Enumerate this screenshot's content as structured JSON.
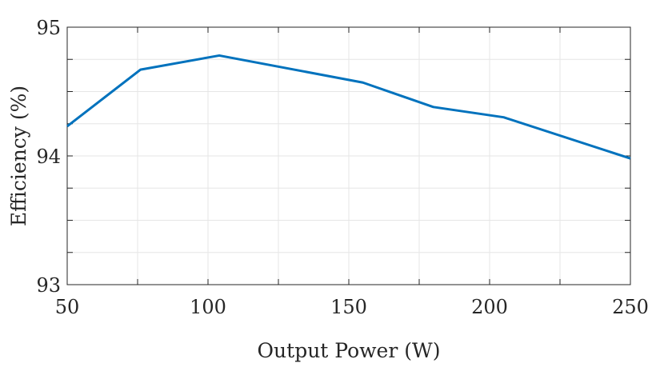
{
  "chart_data": {
    "type": "line",
    "xlabel": "Output Power (W)",
    "ylabel": "Efficiency (%)",
    "xlim": [
      50,
      250
    ],
    "ylim": [
      93,
      95
    ],
    "x_ticks": [
      50,
      100,
      150,
      200,
      250
    ],
    "x_tick_labels": [
      "50",
      "100",
      "150",
      "200",
      "250"
    ],
    "x_minor_ticks": [
      75,
      125,
      175,
      225
    ],
    "y_ticks": [
      93,
      94,
      95
    ],
    "y_tick_labels": [
      "93",
      "94",
      "95"
    ],
    "y_minor_ticks": [
      93.25,
      93.5,
      93.75,
      94.25,
      94.5,
      94.75
    ],
    "grid": true,
    "series": [
      {
        "color": "#0072BD",
        "x": [
          50,
          76,
          104,
          155,
          180,
          205,
          250
        ],
        "y": [
          94.23,
          94.67,
          94.78,
          94.57,
          94.38,
          94.3,
          93.98
        ]
      }
    ]
  }
}
